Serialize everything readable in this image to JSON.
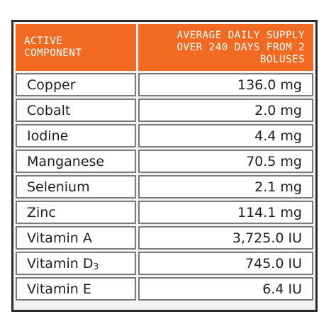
{
  "table": {
    "headers": {
      "component_line1": "ACTIVE",
      "component_line2": "COMPONENT",
      "supply_line1": "AVERAGE DAILY SUPPLY",
      "supply_line2": "OVER 240 DAYS FROM 2",
      "supply_line3": "BOLUSES"
    },
    "rows": [
      {
        "name": "Copper",
        "value": "136.0 mg"
      },
      {
        "name": "Cobalt",
        "value": "2.0 mg"
      },
      {
        "name": "Iodine",
        "value": "4.4 mg"
      },
      {
        "name": "Manganese",
        "value": "70.5 mg"
      },
      {
        "name": "Selenium",
        "value": "2.1 mg"
      },
      {
        "name": "Zinc",
        "value": "114.1 mg"
      },
      {
        "name": "Vitamin A",
        "value": "3,725.0 IU"
      },
      {
        "name": "Vitamin D",
        "subscript": "3",
        "value": "745.0 IU"
      },
      {
        "name": "Vitamin E",
        "value": "6.4 IU"
      }
    ]
  },
  "colors": {
    "header_bg": "#f26a21",
    "header_text": "#ffffff",
    "border": "#2a2a2a",
    "cell_border": "#7a7a7a"
  }
}
